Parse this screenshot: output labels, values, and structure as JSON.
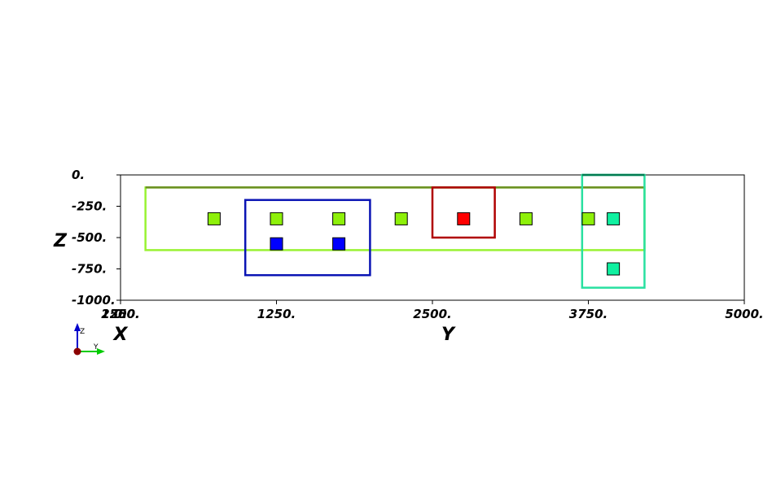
{
  "chart_data": {
    "type": "scatter",
    "view": "2D projection (Y horizontal, Z vertical)",
    "x_axis": {
      "ticks": [
        {
          "value": 0,
          "label": "0."
        },
        {
          "value": 1250,
          "label": "1250."
        },
        {
          "value": 2500,
          "label": "2500."
        },
        {
          "value": 3750,
          "label": "3750."
        },
        {
          "value": 5000,
          "label": "5000."
        }
      ],
      "overlapped_tick_labels": [
        "2500.",
        "1250.",
        "0."
      ],
      "titles": [
        "X",
        "Y"
      ],
      "range": [
        0,
        5000
      ]
    },
    "y_axis": {
      "ticks": [
        {
          "value": 0,
          "label": "0."
        },
        {
          "value": -250,
          "label": "-250."
        },
        {
          "value": -500,
          "label": "-500."
        },
        {
          "value": -750,
          "label": "-750."
        },
        {
          "value": -1000,
          "label": "-1000."
        }
      ],
      "title": "Z",
      "range": [
        -1000,
        0
      ]
    },
    "grid": false,
    "rectangles": [
      {
        "y0": 200,
        "y1": 4200,
        "z0": -100,
        "z1": -600,
        "top_color": "#6b8e23",
        "color": "#99f233"
      },
      {
        "y0": 1000,
        "y1": 2000,
        "z0": -200,
        "z1": -800,
        "color": "#0a14b4"
      },
      {
        "y0": 2500,
        "y1": 3000,
        "z0": -100,
        "z1": -500,
        "color": "#b00000"
      },
      {
        "y0": 3700,
        "y1": 4200,
        "z0": 0,
        "z1": -900,
        "top_color": "#007a50",
        "color": "#28e0a0"
      }
    ],
    "points": [
      {
        "y": 750,
        "z": -350,
        "color": "#8ef00a"
      },
      {
        "y": 1250,
        "z": -350,
        "color": "#8ef00a"
      },
      {
        "y": 1750,
        "z": -350,
        "color": "#8ef00a"
      },
      {
        "y": 2250,
        "z": -350,
        "color": "#8ef00a"
      },
      {
        "y": 2750,
        "z": -350,
        "color": "#ff0000"
      },
      {
        "y": 3250,
        "z": -350,
        "color": "#8ef00a"
      },
      {
        "y": 3750,
        "z": -350,
        "color": "#8ef00a"
      },
      {
        "y": 3950,
        "z": -350,
        "color": "#10f0a0"
      },
      {
        "y": 1250,
        "z": -550,
        "color": "#0000ff"
      },
      {
        "y": 1750,
        "z": -550,
        "color": "#0000ff"
      },
      {
        "y": 3950,
        "z": -750,
        "color": "#10f0a0"
      }
    ]
  },
  "triad": {
    "labels": [
      "Z",
      "Y"
    ],
    "colors": {
      "z": "#0000cc",
      "y": "#00cc00",
      "x": "#8b0000"
    }
  }
}
